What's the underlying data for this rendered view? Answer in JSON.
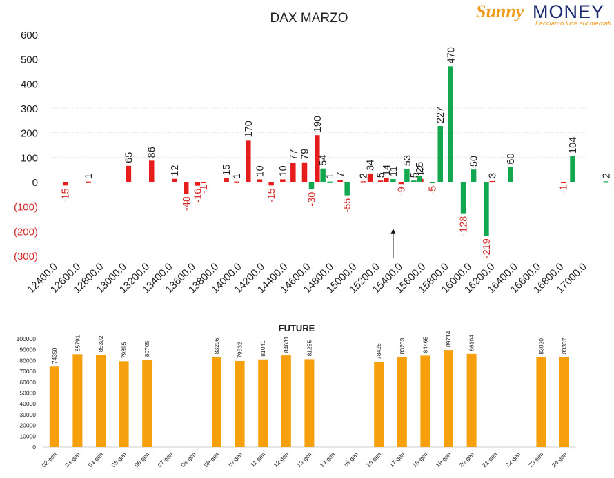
{
  "logo": {
    "brand_a": "Sunny",
    "brand_b": "MONEY",
    "tagline": "Facciamo luce sui mercati"
  },
  "colors": {
    "positive": "#12a84f",
    "negative": "#e51d1d",
    "future": "#f5a00c",
    "neg_label": "#d62a2a",
    "text": "#222222"
  },
  "chart_data": [
    {
      "type": "bar",
      "title": "DAX MARZO",
      "ylim": [
        -300,
        600
      ],
      "yticks": [
        "(300)",
        "(200)",
        "(100)",
        "0",
        "100",
        "200",
        "300",
        "400",
        "500",
        "600"
      ],
      "xticks": [
        "12400.0",
        "12600.0",
        "12800.0",
        "13000.0",
        "13200.0",
        "13400.0",
        "13600.0",
        "13800.0",
        "14000.0",
        "14200.0",
        "14400.0",
        "14600.0",
        "14800.0",
        "15000.0",
        "15200.0",
        "15400.0",
        "15600.0",
        "15800.0",
        "16000.0",
        "16200.0",
        "16400.0",
        "16600.0",
        "16800.0",
        "17000.0"
      ],
      "series": [
        {
          "color": "negative",
          "points": [
            {
              "x": 12500,
              "y": -15
            },
            {
              "x": 12700,
              "y": 1
            },
            {
              "x": 13050,
              "y": 65
            },
            {
              "x": 13250,
              "y": 86
            },
            {
              "x": 13450,
              "y": 12
            },
            {
              "x": 13550,
              "y": -48
            },
            {
              "x": 13650,
              "y": -16
            },
            {
              "x": 13700,
              "y": -1
            },
            {
              "x": 13900,
              "y": 15
            },
            {
              "x": 13990,
              "y": 1
            },
            {
              "x": 14090,
              "y": 170
            },
            {
              "x": 14190,
              "y": 10
            },
            {
              "x": 14290,
              "y": -15
            },
            {
              "x": 14390,
              "y": 10
            },
            {
              "x": 14480,
              "y": 77
            },
            {
              "x": 14580,
              "y": 79
            },
            {
              "x": 14690,
              "y": 190
            },
            {
              "x": 14890,
              "y": 7
            },
            {
              "x": 15090,
              "y": 2
            },
            {
              "x": 15150,
              "y": 34
            },
            {
              "x": 15240,
              "y": 5
            },
            {
              "x": 15290,
              "y": 14
            },
            {
              "x": 15420,
              "y": -9
            },
            {
              "x": 15590,
              "y": 12
            },
            {
              "x": 16210,
              "y": 3
            },
            {
              "x": 16830,
              "y": -1
            }
          ]
        },
        {
          "color": "positive",
          "points": [
            {
              "x": 14640,
              "y": -30
            },
            {
              "x": 14740,
              "y": 54
            },
            {
              "x": 14800,
              "y": 1
            },
            {
              "x": 14950,
              "y": -55
            },
            {
              "x": 15350,
              "y": 11
            },
            {
              "x": 15470,
              "y": 53
            },
            {
              "x": 15530,
              "y": 5
            },
            {
              "x": 15580,
              "y": 25
            },
            {
              "x": 15690,
              "y": -5
            },
            {
              "x": 15760,
              "y": 227
            },
            {
              "x": 15850,
              "y": 470
            },
            {
              "x": 15960,
              "y": -128
            },
            {
              "x": 16050,
              "y": 50
            },
            {
              "x": 16160,
              "y": -219
            },
            {
              "x": 16370,
              "y": 60
            },
            {
              "x": 16910,
              "y": 104
            },
            {
              "x": 17200,
              "y": 2
            }
          ]
        }
      ],
      "annotation": {
        "type": "arrow",
        "x": 15350,
        "y_from": -310,
        "y_to": -190
      }
    },
    {
      "type": "bar",
      "title": "FUTURE",
      "ylim": [
        0,
        100000
      ],
      "yticks": [
        "0",
        "10000",
        "20000",
        "30000",
        "40000",
        "50000",
        "60000",
        "70000",
        "80000",
        "90000",
        "100000"
      ],
      "categories": [
        "02-gen",
        "03-gen",
        "04-gen",
        "05-gen",
        "06-gen",
        "07-gen",
        "08-gen",
        "09-gen",
        "10-gen",
        "11-gen",
        "12-gen",
        "13-gen",
        "14-gen",
        "15-gen",
        "16-gen",
        "17-gen",
        "18-gen",
        "19-gen",
        "20-gen",
        "21-gen",
        "22-gen",
        "23-gen",
        "24-gen"
      ],
      "values": [
        74350,
        85791,
        85302,
        79395,
        80705,
        null,
        null,
        83296,
        79632,
        81041,
        84631,
        81255,
        null,
        null,
        78426,
        83203,
        84465,
        89714,
        86104,
        null,
        null,
        83020,
        83337
      ],
      "labels": [
        "74350",
        "85791",
        "85302",
        "79395",
        "80705",
        "",
        "",
        "83296",
        "79632",
        "81041",
        "84631",
        "81255",
        "",
        "",
        "78426",
        "83203",
        "84465",
        "89714",
        "86104",
        "",
        "",
        "83020",
        "83337"
      ]
    }
  ]
}
